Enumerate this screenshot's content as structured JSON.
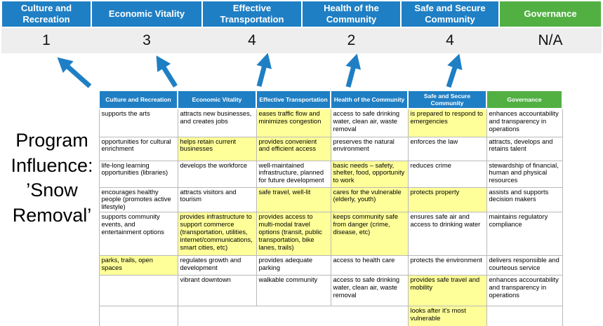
{
  "colors": {
    "header_blue": "#1f7fc4",
    "header_green": "#52b043",
    "highlight_yellow": "#ffff99",
    "score_band_gray": "#eeeeee"
  },
  "program_label": "Program Influence: ’Snow Removal’",
  "summary": {
    "columns": [
      {
        "label": "Culture and Recreation",
        "score": "1",
        "color": "blue"
      },
      {
        "label": "Economic Vitality",
        "score": "3",
        "color": "blue"
      },
      {
        "label": "Effective Transportation",
        "score": "4",
        "color": "blue"
      },
      {
        "label": "Health of the Community",
        "score": "2",
        "color": "blue"
      },
      {
        "label": "Safe and Secure Community",
        "score": "4",
        "color": "blue"
      },
      {
        "label": "Governance",
        "score": "N/A",
        "color": "green"
      }
    ]
  },
  "matrix": {
    "headers": [
      {
        "label": "Culture and Recreation",
        "color": "blue"
      },
      {
        "label": "Economic Vitality",
        "color": "blue"
      },
      {
        "label": "Effective Transportation",
        "color": "blue"
      },
      {
        "label": "Health of the Community",
        "color": "blue"
      },
      {
        "label": "Safe and Secure Community",
        "color": "blue"
      },
      {
        "label": "Governance",
        "color": "green"
      }
    ],
    "rows": [
      [
        {
          "t": "supports the arts",
          "hl": false
        },
        {
          "t": "attracts new businesses, and creates jobs",
          "hl": false
        },
        {
          "t": "eases traffic flow and minimizes congestion",
          "hl": true
        },
        {
          "t": "access to safe drinking water, clean air, waste removal",
          "hl": false
        },
        {
          "t": "is prepared to respond to emergencies",
          "hl": true
        },
        {
          "t": "enhances accountability and transparency in operations",
          "hl": false
        }
      ],
      [
        {
          "t": "opportunities for cultural enrichment",
          "hl": false
        },
        {
          "t": "helps retain current businesses",
          "hl": true
        },
        {
          "t": "provides convenient and efficient access",
          "hl": true
        },
        {
          "t": "preserves the natural environment",
          "hl": false
        },
        {
          "t": "enforces the law",
          "hl": false
        },
        {
          "t": "attracts, develops and retains talent",
          "hl": false
        }
      ],
      [
        {
          "t": "life-long learning opportunities (libraries)",
          "hl": false
        },
        {
          "t": "develops the workforce",
          "hl": false
        },
        {
          "t": "well-maintained infrastructure, planned for future development",
          "hl": false
        },
        {
          "t": "basic needs – safety, shelter, food, opportunity to work",
          "hl": true
        },
        {
          "t": "reduces crime",
          "hl": false
        },
        {
          "t": "stewardship of financial, human and physical resources",
          "hl": false
        }
      ],
      [
        {
          "t": "encourages healthy people (promotes active lifestyle)",
          "hl": false
        },
        {
          "t": "attracts visitors and tourism",
          "hl": false
        },
        {
          "t": "safe travel, well-lit",
          "hl": true
        },
        {
          "t": "cares for the vulnerable (elderly, youth)",
          "hl": true
        },
        {
          "t": "protects property",
          "hl": true
        },
        {
          "t": "assists and supports decision makers",
          "hl": false
        }
      ],
      [
        {
          "t": "supports community events, and entertainment options",
          "hl": false
        },
        {
          "t": "provides infrastructure to support commerce (transportation, utilities, internet/communications, smart cities, etc)",
          "hl": true
        },
        {
          "t": "provides access to multi-modal travel options (transit, public transportation, bike lanes, trails)",
          "hl": true
        },
        {
          "t": "keeps community safe from danger (crime, disease, etc)",
          "hl": true
        },
        {
          "t": "ensures safe air and access to drinking water",
          "hl": false
        },
        {
          "t": "maintains regulatory compliance",
          "hl": false
        }
      ],
      [
        {
          "t": "parks, trails, open spaces",
          "hl": true
        },
        {
          "t": "regulates growth and development",
          "hl": false
        },
        {
          "t": "provides adequate parking",
          "hl": false
        },
        {
          "t": "access to health care",
          "hl": false
        },
        {
          "t": "protects the environment",
          "hl": false
        },
        {
          "t": "delivers responsible and courteous service",
          "hl": false
        }
      ],
      [
        {
          "t": "",
          "hl": false
        },
        {
          "t": "vibrant downtown",
          "hl": false
        },
        {
          "t": "walkable community",
          "hl": false
        },
        {
          "t": "access to safe drinking water, clean air, waste removal",
          "hl": false
        },
        {
          "t": "provides safe travel and mobility",
          "hl": true
        },
        {
          "t": "enhances accountability and transparency in operations",
          "hl": false
        }
      ],
      [
        {
          "t": "",
          "hl": false
        },
        {
          "t": "",
          "hl": false,
          "nb": true
        },
        {
          "t": "",
          "hl": false,
          "nb": true
        },
        {
          "t": "",
          "hl": false,
          "nb": true
        },
        {
          "t": "looks after it's most vulnerable",
          "hl": true
        },
        {
          "t": "",
          "hl": false
        }
      ]
    ]
  }
}
